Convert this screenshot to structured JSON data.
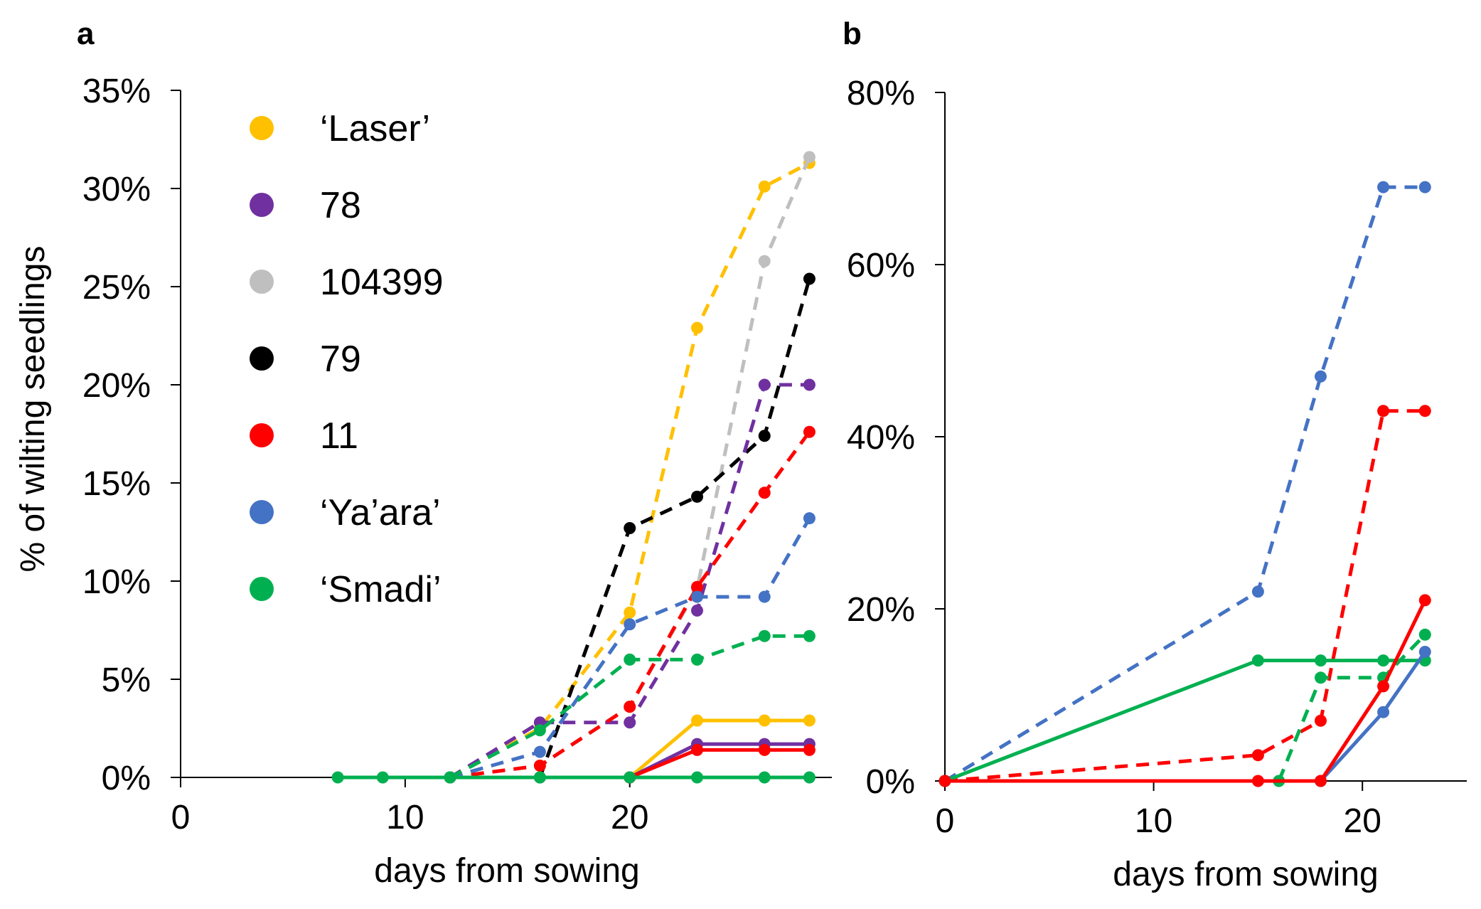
{
  "chart_data": [
    {
      "panel_label": "a",
      "type": "line",
      "xlabel": "days from sowing",
      "ylabel": "% of wilting seedlings",
      "xlim": [
        0,
        29
      ],
      "ylim": [
        0,
        35
      ],
      "xticks": [
        0,
        10,
        20
      ],
      "yticks": [
        0,
        5,
        10,
        15,
        20,
        25,
        30,
        35
      ],
      "xtick_labels": [
        "0",
        "10",
        "20"
      ],
      "ytick_labels": [
        "0%",
        "5%",
        "10%",
        "15%",
        "20%",
        "25%",
        "30%",
        "35%"
      ],
      "legend": [
        {
          "label": "‘Laser’",
          "color": "#FFC000"
        },
        {
          "label": "78",
          "color": "#7030A0"
        },
        {
          "label": "104399",
          "color": "#BFBFBF"
        },
        {
          "label": "79",
          "color": "#000000"
        },
        {
          "label": "11",
          "color": "#FF0000"
        },
        {
          "label": "‘Ya’ara’",
          "color": "#4472C4"
        },
        {
          "label": "‘Smadi’",
          "color": "#00B050"
        }
      ],
      "series": [
        {
          "name": "Laser dashed",
          "color": "#FFC000",
          "style": "dashed",
          "x": [
            12,
            16,
            20,
            23,
            26,
            28
          ],
          "y": [
            0,
            2.5,
            8.4,
            22.9,
            30.1,
            31.3
          ]
        },
        {
          "name": "104399 dashed",
          "color": "#BFBFBF",
          "style": "dashed",
          "x": [
            12,
            16,
            20,
            23,
            26,
            28
          ],
          "y": [
            0,
            0.6,
            3.6,
            9.6,
            26.3,
            31.6
          ]
        },
        {
          "name": "79 dashed",
          "color": "#000000",
          "style": "dashed",
          "x": [
            16,
            20,
            23,
            26,
            28
          ],
          "y": [
            0,
            12.7,
            14.3,
            17.4,
            25.4
          ]
        },
        {
          "name": "78 dashed",
          "color": "#7030A0",
          "style": "dashed",
          "x": [
            12,
            16,
            20,
            23,
            26,
            28
          ],
          "y": [
            0,
            2.8,
            2.8,
            8.5,
            20.0,
            20.0
          ]
        },
        {
          "name": "11 dashed",
          "color": "#FF0000",
          "style": "dashed",
          "x": [
            12,
            16,
            20,
            23,
            26,
            28
          ],
          "y": [
            0,
            0.6,
            3.6,
            9.7,
            14.5,
            17.6
          ]
        },
        {
          "name": "Ya'ara dashed",
          "color": "#4472C4",
          "style": "dashed",
          "x": [
            12,
            16,
            20,
            23,
            26,
            28
          ],
          "y": [
            0,
            1.3,
            7.8,
            9.2,
            9.2,
            13.2
          ]
        },
        {
          "name": "Smadi dashed",
          "color": "#00B050",
          "style": "dashed",
          "x": [
            12,
            16,
            20,
            23,
            26,
            28
          ],
          "y": [
            0,
            2.4,
            6.0,
            6.0,
            7.2,
            7.2
          ]
        },
        {
          "name": "Laser solid",
          "color": "#FFC000",
          "style": "solid",
          "x": [
            20,
            23,
            26,
            28
          ],
          "y": [
            0,
            2.9,
            2.9,
            2.9
          ]
        },
        {
          "name": "78 solid",
          "color": "#7030A0",
          "style": "solid",
          "x": [
            20,
            23,
            26,
            28
          ],
          "y": [
            0,
            1.7,
            1.7,
            1.7
          ]
        },
        {
          "name": "11 solid",
          "color": "#FF0000",
          "style": "solid",
          "x": [
            20,
            23,
            26,
            28
          ],
          "y": [
            0,
            1.4,
            1.4,
            1.4
          ]
        },
        {
          "name": "Smadi solid",
          "color": "#00B050",
          "style": "solid",
          "x": [
            7,
            9,
            12,
            16,
            20,
            23,
            26,
            28
          ],
          "y": [
            0,
            0,
            0,
            0,
            0,
            0,
            0,
            0
          ]
        }
      ]
    },
    {
      "panel_label": "b",
      "type": "line",
      "xlabel": "days from sowing",
      "ylabel": "",
      "xlim": [
        0,
        25
      ],
      "ylim": [
        0,
        80
      ],
      "xticks": [
        0,
        10,
        20
      ],
      "yticks": [
        0,
        20,
        40,
        60,
        80
      ],
      "xtick_labels": [
        "0",
        "10",
        "20"
      ],
      "ytick_labels": [
        "0%",
        "20%",
        "40%",
        "60%",
        "80%"
      ],
      "series": [
        {
          "name": "Ya'ara dashed",
          "color": "#4472C4",
          "style": "dashed",
          "x": [
            0,
            15,
            18,
            21,
            23
          ],
          "y": [
            0,
            22,
            47,
            69,
            69
          ]
        },
        {
          "name": "11 dashed",
          "color": "#FF0000",
          "style": "dashed",
          "x": [
            0,
            15,
            18,
            21,
            23
          ],
          "y": [
            0,
            3,
            7,
            43,
            43
          ]
        },
        {
          "name": "Smadi dashed",
          "color": "#00B050",
          "style": "dashed",
          "x": [
            16,
            18,
            21,
            23
          ],
          "y": [
            0,
            12,
            12,
            17
          ]
        },
        {
          "name": "Smadi solid",
          "color": "#00B050",
          "style": "solid",
          "x": [
            0,
            15,
            18,
            21,
            23
          ],
          "y": [
            0,
            14,
            14,
            14,
            14
          ]
        },
        {
          "name": "Ya'ara solid",
          "color": "#4472C4",
          "style": "solid",
          "x": [
            18,
            21,
            23
          ],
          "y": [
            0,
            8,
            15
          ]
        },
        {
          "name": "11 solid",
          "color": "#FF0000",
          "style": "solid",
          "x": [
            0,
            15,
            18,
            21,
            23
          ],
          "y": [
            0,
            0,
            0,
            11,
            21
          ]
        }
      ]
    }
  ]
}
